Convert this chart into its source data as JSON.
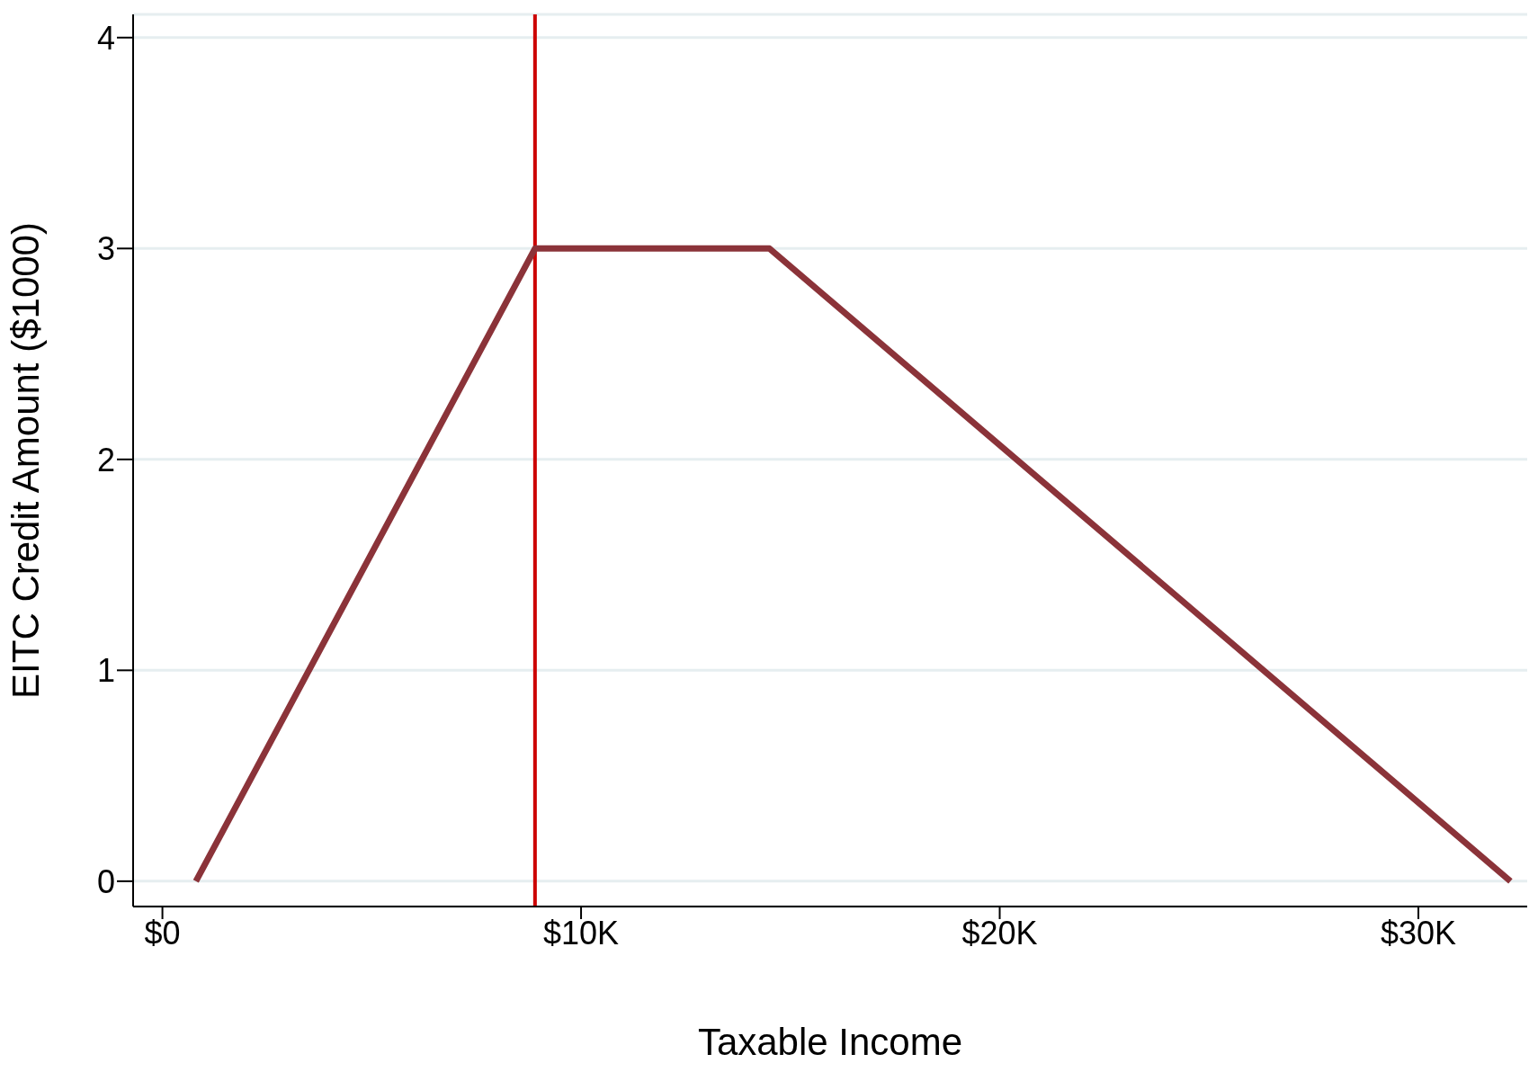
{
  "chart_data": {
    "type": "line",
    "xlabel": "Taxable Income",
    "ylabel": "EITC Credit Amount ($1000)",
    "x": [
      800,
      8900,
      14500,
      32200
    ],
    "series": [
      {
        "color": "#8b3339",
        "values": [
          0,
          3,
          3,
          0
        ]
      }
    ],
    "xlim": [
      -700,
      32600
    ],
    "xticks": [
      {
        "value": 0,
        "label": "$0"
      },
      {
        "value": 10000,
        "label": "$10K"
      },
      {
        "value": 20000,
        "label": "$20K"
      },
      {
        "value": 30000,
        "label": "$30K"
      }
    ],
    "ylim": [
      -0.12,
      4.11
    ],
    "yticks": [
      0,
      1,
      2,
      3,
      4
    ],
    "grid": "y",
    "legend": false,
    "marker": "none",
    "line_style": "solid",
    "ref_lines": [
      {
        "axis": "x",
        "value": 8900,
        "color": "#cc0000"
      }
    ]
  }
}
